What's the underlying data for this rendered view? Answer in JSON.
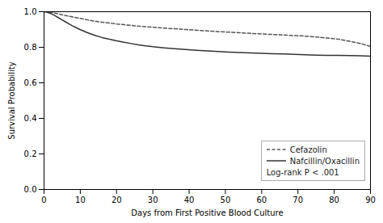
{
  "chart_data": {
    "type": "line",
    "xlabel": "Days from First Positive Blood Culture",
    "ylabel": "Survival Probability",
    "x": [
      0,
      0.5,
      1,
      2,
      3,
      4,
      5,
      6,
      7,
      8,
      9,
      10,
      12,
      14,
      16,
      18,
      20,
      22,
      24,
      26,
      28,
      30,
      33,
      36,
      39,
      42,
      45,
      48,
      51,
      54,
      57,
      60,
      63,
      66,
      69,
      72,
      75,
      78,
      81,
      84,
      87,
      90
    ],
    "series": [
      {
        "name": "Cefazolin",
        "color": "#555555",
        "line_style": "dashed",
        "values": [
          1.0,
          1.0,
          0.998,
          0.995,
          0.992,
          0.988,
          0.983,
          0.978,
          0.974,
          0.97,
          0.966,
          0.962,
          0.954,
          0.947,
          0.941,
          0.936,
          0.931,
          0.927,
          0.923,
          0.919,
          0.916,
          0.913,
          0.908,
          0.904,
          0.9,
          0.896,
          0.892,
          0.888,
          0.885,
          0.882,
          0.878,
          0.875,
          0.872,
          0.869,
          0.866,
          0.863,
          0.858,
          0.852,
          0.846,
          0.835,
          0.822,
          0.805
        ]
      },
      {
        "name": "Nafcillin/Oxacillin",
        "color": "#333333",
        "line_style": "solid",
        "values": [
          1.0,
          1.0,
          0.996,
          0.988,
          0.978,
          0.966,
          0.954,
          0.942,
          0.93,
          0.919,
          0.909,
          0.899,
          0.882,
          0.867,
          0.855,
          0.845,
          0.836,
          0.828,
          0.821,
          0.814,
          0.808,
          0.803,
          0.797,
          0.792,
          0.787,
          0.783,
          0.779,
          0.776,
          0.773,
          0.77,
          0.768,
          0.766,
          0.764,
          0.762,
          0.76,
          0.758,
          0.756,
          0.755,
          0.754,
          0.753,
          0.752,
          0.75
        ]
      }
    ],
    "xlim": [
      0,
      90
    ],
    "ylim": [
      0.0,
      1.0
    ],
    "xticks": [
      0,
      10,
      20,
      30,
      40,
      50,
      60,
      70,
      80,
      90
    ],
    "yticks": [
      {
        "value": 0.0,
        "label": "0.0"
      },
      0.2,
      0.4,
      0.6,
      0.8,
      {
        "value": 1.0,
        "label": "1.0"
      }
    ],
    "grid": false,
    "legend": "lower right",
    "annotations": [
      "Log-rank P < .001"
    ]
  }
}
